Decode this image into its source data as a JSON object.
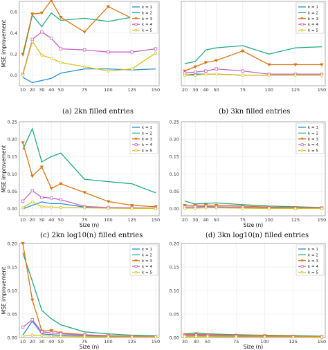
{
  "colors": {
    "k1": "#1f8fd6",
    "k2": "#22a77f",
    "k3": "#d9730d",
    "k4": "#c765c5",
    "k5": "#d8c21a"
  },
  "chart_data": [
    {
      "type": "line",
      "id": "a",
      "caption": "(a) 2kn filled entries",
      "xlabel": "",
      "ylabel": "MSE improvement",
      "xticks": [
        10,
        20,
        30,
        40,
        50,
        75,
        100,
        125,
        150
      ],
      "ylim": [
        -0.1,
        0.7
      ],
      "yticks": [
        "0.0",
        "0.2",
        "0.4",
        "0.6"
      ],
      "ytick_values": [
        0,
        0.2,
        0.4,
        0.6
      ],
      "legend": "top-right",
      "series": [
        {
          "name": "k = 1",
          "marker": "none",
          "x": [
            10,
            20,
            30,
            40,
            50,
            75,
            100,
            125,
            150
          ],
          "y": [
            -0.02,
            -0.07,
            -0.05,
            -0.03,
            0.02,
            0.06,
            0.06,
            0.05,
            0.06
          ]
        },
        {
          "name": "k = 2",
          "marker": "none",
          "x": [
            10,
            20,
            30,
            40,
            50,
            75,
            100,
            125,
            150
          ],
          "y": [
            0.18,
            0.57,
            0.46,
            0.59,
            0.52,
            0.54,
            0.51,
            0.55,
            0.53
          ]
        },
        {
          "name": "k = 3",
          "marker": "triangle",
          "x": [
            10,
            20,
            30,
            40,
            50,
            75,
            100,
            125,
            150
          ],
          "y": [
            0.2,
            0.58,
            0.59,
            0.71,
            0.55,
            0.41,
            0.65,
            0.54,
            0.55
          ]
        },
        {
          "name": "k = 4",
          "marker": "square",
          "x": [
            10,
            20,
            30,
            40,
            50,
            75,
            100,
            125,
            150
          ],
          "y": [
            0.01,
            0.34,
            0.41,
            0.35,
            0.25,
            0.24,
            0.22,
            0.22,
            0.25
          ]
        },
        {
          "name": "k = 5",
          "marker": "circle",
          "x": [
            10,
            20,
            30,
            40,
            50,
            75,
            100,
            125,
            150
          ],
          "y": [
            0.0,
            0.32,
            0.19,
            0.16,
            0.12,
            0.08,
            0.04,
            0.06,
            0.21
          ]
        }
      ]
    },
    {
      "type": "line",
      "id": "b",
      "caption": "(b) 3kn filled entries",
      "xlabel": "",
      "ylabel": "",
      "xticks": [
        20,
        30,
        40,
        50,
        75,
        100,
        125,
        150
      ],
      "ylim": [
        -0.1,
        0.7
      ],
      "yticks": [],
      "ytick_values": [],
      "legend": "top-right",
      "series": [
        {
          "name": "k = 1",
          "marker": "none",
          "x": [
            20,
            30,
            40,
            50,
            75,
            100,
            125,
            150
          ],
          "y": [
            0.0,
            0.01,
            0.01,
            0.01,
            0.0,
            0.0,
            0.0,
            0.0
          ]
        },
        {
          "name": "k = 2",
          "marker": "none",
          "x": [
            20,
            30,
            40,
            50,
            75,
            100,
            125,
            150
          ],
          "y": [
            0.11,
            0.13,
            0.24,
            0.26,
            0.28,
            0.2,
            0.26,
            0.27
          ]
        },
        {
          "name": "k = 3",
          "marker": "triangle",
          "x": [
            20,
            30,
            40,
            50,
            75,
            100,
            125,
            150
          ],
          "y": [
            0.04,
            0.08,
            0.12,
            0.14,
            0.23,
            0.1,
            0.1,
            0.1
          ]
        },
        {
          "name": "k = 4",
          "marker": "square",
          "x": [
            20,
            30,
            40,
            50,
            75,
            100,
            125,
            150
          ],
          "y": [
            0.02,
            0.03,
            0.04,
            0.06,
            0.04,
            0.01,
            0.01,
            0.01
          ]
        },
        {
          "name": "k = 5",
          "marker": "circle",
          "x": [
            20,
            30,
            40,
            50,
            75,
            100,
            125,
            150
          ],
          "y": [
            0.0,
            0.0,
            0.01,
            0.01,
            0.0,
            0.0,
            0.0,
            0.0
          ]
        }
      ]
    },
    {
      "type": "line",
      "id": "c",
      "caption": "(c) 2kn log10(n) filled entries",
      "xlabel": "Size (n)",
      "ylabel": "MSE improvement",
      "xticks": [
        10,
        20,
        30,
        40,
        50,
        75,
        100,
        125,
        150
      ],
      "ylim": [
        -0.02,
        0.25
      ],
      "yticks": [
        "0.00",
        "0.05",
        "0.10",
        "0.15",
        "0.20",
        "0.25"
      ],
      "ytick_values": [
        0,
        0.05,
        0.1,
        0.15,
        0.2,
        0.25
      ],
      "legend": "top-right",
      "series": [
        {
          "name": "k = 1",
          "marker": "none",
          "x": [
            10,
            20,
            30,
            40,
            50,
            75,
            100,
            125,
            150
          ],
          "y": [
            0.0,
            0.01,
            0.02,
            0.015,
            0.015,
            0.005,
            0.003,
            0.002,
            0.001
          ]
        },
        {
          "name": "k = 2",
          "marker": "none",
          "x": [
            10,
            20,
            30,
            40,
            50,
            75,
            100,
            125,
            150
          ],
          "y": [
            0.17,
            0.23,
            0.135,
            0.15,
            0.16,
            0.085,
            0.078,
            0.072,
            0.046
          ]
        },
        {
          "name": "k = 3",
          "marker": "triangle",
          "x": [
            10,
            20,
            30,
            40,
            50,
            75,
            100,
            125,
            150
          ],
          "y": [
            0.19,
            0.094,
            0.12,
            0.059,
            0.072,
            0.047,
            0.021,
            0.01,
            0.006
          ]
        },
        {
          "name": "k = 4",
          "marker": "square",
          "x": [
            10,
            20,
            30,
            40,
            50,
            75,
            100,
            125,
            150
          ],
          "y": [
            0.022,
            0.052,
            0.033,
            0.031,
            0.026,
            0.007,
            0.004,
            0.003,
            0.002
          ]
        },
        {
          "name": "k = 5",
          "marker": "circle",
          "x": [
            10,
            20,
            30,
            40,
            50,
            75,
            100,
            125,
            150
          ],
          "y": [
            0.003,
            0.02,
            0.006,
            0.005,
            0.004,
            0.003,
            0.002,
            0.001,
            0.001
          ]
        }
      ]
    },
    {
      "type": "line",
      "id": "d",
      "caption": "(d) 3kn log10(n) filled entries",
      "xlabel": "Size (n)",
      "ylabel": "",
      "xticks": [
        20,
        30,
        40,
        50,
        75,
        100,
        125,
        150
      ],
      "ylim": [
        -0.02,
        0.25
      ],
      "yticks": [
        "0.00",
        "0.05",
        "0.10",
        "0.15",
        "0.20",
        "0.25"
      ],
      "ytick_values": [
        0,
        0.05,
        0.1,
        0.15,
        0.2,
        0.25
      ],
      "legend": "top-right",
      "series": [
        {
          "name": "k = 1",
          "marker": "none",
          "x": [
            20,
            30,
            40,
            50,
            75,
            100,
            125,
            150
          ],
          "y": [
            0.002,
            0.003,
            0.004,
            0.004,
            0.003,
            0.002,
            0.002,
            0.001
          ]
        },
        {
          "name": "k = 2",
          "marker": "none",
          "x": [
            20,
            30,
            40,
            50,
            75,
            100,
            125,
            150
          ],
          "y": [
            0.022,
            0.014,
            0.016,
            0.017,
            0.012,
            0.008,
            0.006,
            0.004
          ]
        },
        {
          "name": "k = 3",
          "marker": "triangle",
          "x": [
            20,
            30,
            40,
            50,
            75,
            100,
            125,
            150
          ],
          "y": [
            0.01,
            0.01,
            0.011,
            0.01,
            0.008,
            0.005,
            0.004,
            0.003
          ]
        },
        {
          "name": "k = 4",
          "marker": "square",
          "x": [
            20,
            30,
            40,
            50,
            75,
            100,
            125,
            150
          ],
          "y": [
            0.005,
            0.006,
            0.007,
            0.006,
            0.005,
            0.003,
            0.002,
            0.002
          ]
        },
        {
          "name": "k = 5",
          "marker": "circle",
          "x": [
            20,
            30,
            40,
            50,
            75,
            100,
            125,
            150
          ],
          "y": [
            0.002,
            0.002,
            0.003,
            0.003,
            0.002,
            0.001,
            0.001,
            0.001
          ]
        }
      ]
    },
    {
      "type": "line",
      "id": "e",
      "caption": "",
      "xlabel": "Size (n)",
      "ylabel": "MSE improvement",
      "xticks": [
        10,
        20,
        30,
        40,
        50,
        75,
        100,
        125,
        150
      ],
      "ylim": [
        0,
        0.2
      ],
      "yticks": [
        "0.00",
        "0.05",
        "0.10",
        "0.15",
        "0.20"
      ],
      "ytick_values": [
        0,
        0.05,
        0.1,
        0.15,
        0.2
      ],
      "legend": "top-right",
      "series": [
        {
          "name": "k = 1",
          "marker": "none",
          "x": [
            10,
            20,
            30,
            40,
            50,
            75,
            100,
            125,
            150
          ],
          "y": [
            0.005,
            0.035,
            0.008,
            0.006,
            0.005,
            0.003,
            0.002,
            0.001,
            0.001
          ]
        },
        {
          "name": "k = 2",
          "marker": "none",
          "x": [
            10,
            20,
            30,
            40,
            50,
            75,
            100,
            125,
            150
          ],
          "y": [
            0.18,
            0.12,
            0.058,
            0.04,
            0.027,
            0.012,
            0.008,
            0.005,
            0.004
          ]
        },
        {
          "name": "k = 3",
          "marker": "triangle",
          "x": [
            10,
            20,
            30,
            40,
            50,
            75,
            100,
            125,
            150
          ],
          "y": [
            0.2,
            0.08,
            0.014,
            0.015,
            0.01,
            0.006,
            0.004,
            0.003,
            0.002
          ]
        },
        {
          "name": "k = 4",
          "marker": "square",
          "x": [
            10,
            20,
            30,
            40,
            50,
            75,
            100,
            125,
            150
          ],
          "y": [
            0.022,
            0.038,
            0.012,
            0.01,
            0.008,
            0.005,
            0.003,
            0.002,
            0.002
          ]
        },
        {
          "name": "k = 5",
          "marker": "circle",
          "x": [
            10,
            20,
            30,
            40,
            50,
            75,
            100,
            125,
            150
          ],
          "y": [
            0.003,
            0.005,
            0.004,
            0.003,
            0.003,
            0.002,
            0.001,
            0.001,
            0.001
          ]
        }
      ]
    },
    {
      "type": "line",
      "id": "f",
      "caption": "",
      "xlabel": "Size (n)",
      "ylabel": "",
      "xticks": [
        30,
        40,
        50,
        75,
        100,
        125,
        150
      ],
      "ylim": [
        0,
        0.2
      ],
      "yticks": [
        "0.00",
        "0.05",
        "0.10",
        "0.15",
        "0.20"
      ],
      "ytick_values": [
        0,
        0.05,
        0.1,
        0.15,
        0.2
      ],
      "legend": "top-right",
      "series": [
        {
          "name": "k = 1",
          "marker": "none",
          "x": [
            30,
            40,
            50,
            75,
            100,
            125,
            150
          ],
          "y": [
            0.002,
            0.003,
            0.003,
            0.002,
            0.002,
            0.001,
            0.001
          ]
        },
        {
          "name": "k = 2",
          "marker": "none",
          "x": [
            30,
            40,
            50,
            75,
            100,
            125,
            150
          ],
          "y": [
            0.008,
            0.01,
            0.008,
            0.006,
            0.005,
            0.004,
            0.003
          ]
        },
        {
          "name": "k = 3",
          "marker": "triangle",
          "x": [
            30,
            40,
            50,
            75,
            100,
            125,
            150
          ],
          "y": [
            0.006,
            0.007,
            0.006,
            0.005,
            0.004,
            0.003,
            0.002
          ]
        },
        {
          "name": "k = 4",
          "marker": "square",
          "x": [
            30,
            40,
            50,
            75,
            100,
            125,
            150
          ],
          "y": [
            0.004,
            0.005,
            0.004,
            0.003,
            0.002,
            0.002,
            0.001
          ]
        },
        {
          "name": "k = 5",
          "marker": "circle",
          "x": [
            30,
            40,
            50,
            75,
            100,
            125,
            150
          ],
          "y": [
            0.002,
            0.002,
            0.002,
            0.001,
            0.001,
            0.001,
            0.001
          ]
        }
      ]
    }
  ]
}
